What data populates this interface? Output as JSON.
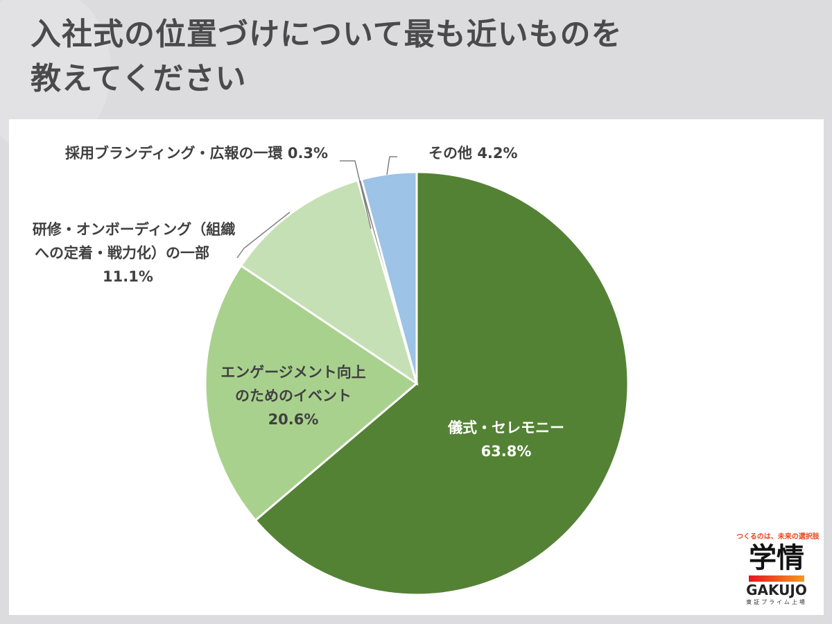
{
  "title_lines": [
    "入社式の位置づけについて最も近いものを",
    "教えてください"
  ],
  "chart_data": {
    "type": "pie",
    "start": "top",
    "direction": "clockwise",
    "slices": [
      {
        "label": "儀式・セレモニー",
        "value": 63.8,
        "value_label": "63.8%",
        "color": "#548235"
      },
      {
        "label": "エンゲージメント向上のためのイベント",
        "label_lines": [
          "エンゲージメント向上",
          "のためのイベント"
        ],
        "value": 20.6,
        "value_label": "20.6%",
        "color": "#a9d18e"
      },
      {
        "label": "研修・オンボーディング（組織への定着・戦力化）の一部",
        "label_lines": [
          "研修・オンボーディング（組織",
          "への定着・戦力化）の一部"
        ],
        "value": 11.1,
        "value_label": "11.1%",
        "color": "#c5e0b4"
      },
      {
        "label": "採用ブランディング・広報の一環",
        "value": 0.3,
        "value_label": "0.3%",
        "color": "#7f7f7f"
      },
      {
        "label": "その他",
        "value": 4.2,
        "value_label": "4.2%",
        "color": "#9dc3e6"
      }
    ]
  },
  "logo": {
    "tagline": "つくるのは、未来の選択肢",
    "name_jp": "学情",
    "name_en": "GAKUJO",
    "sub": "東証プライム上場"
  }
}
